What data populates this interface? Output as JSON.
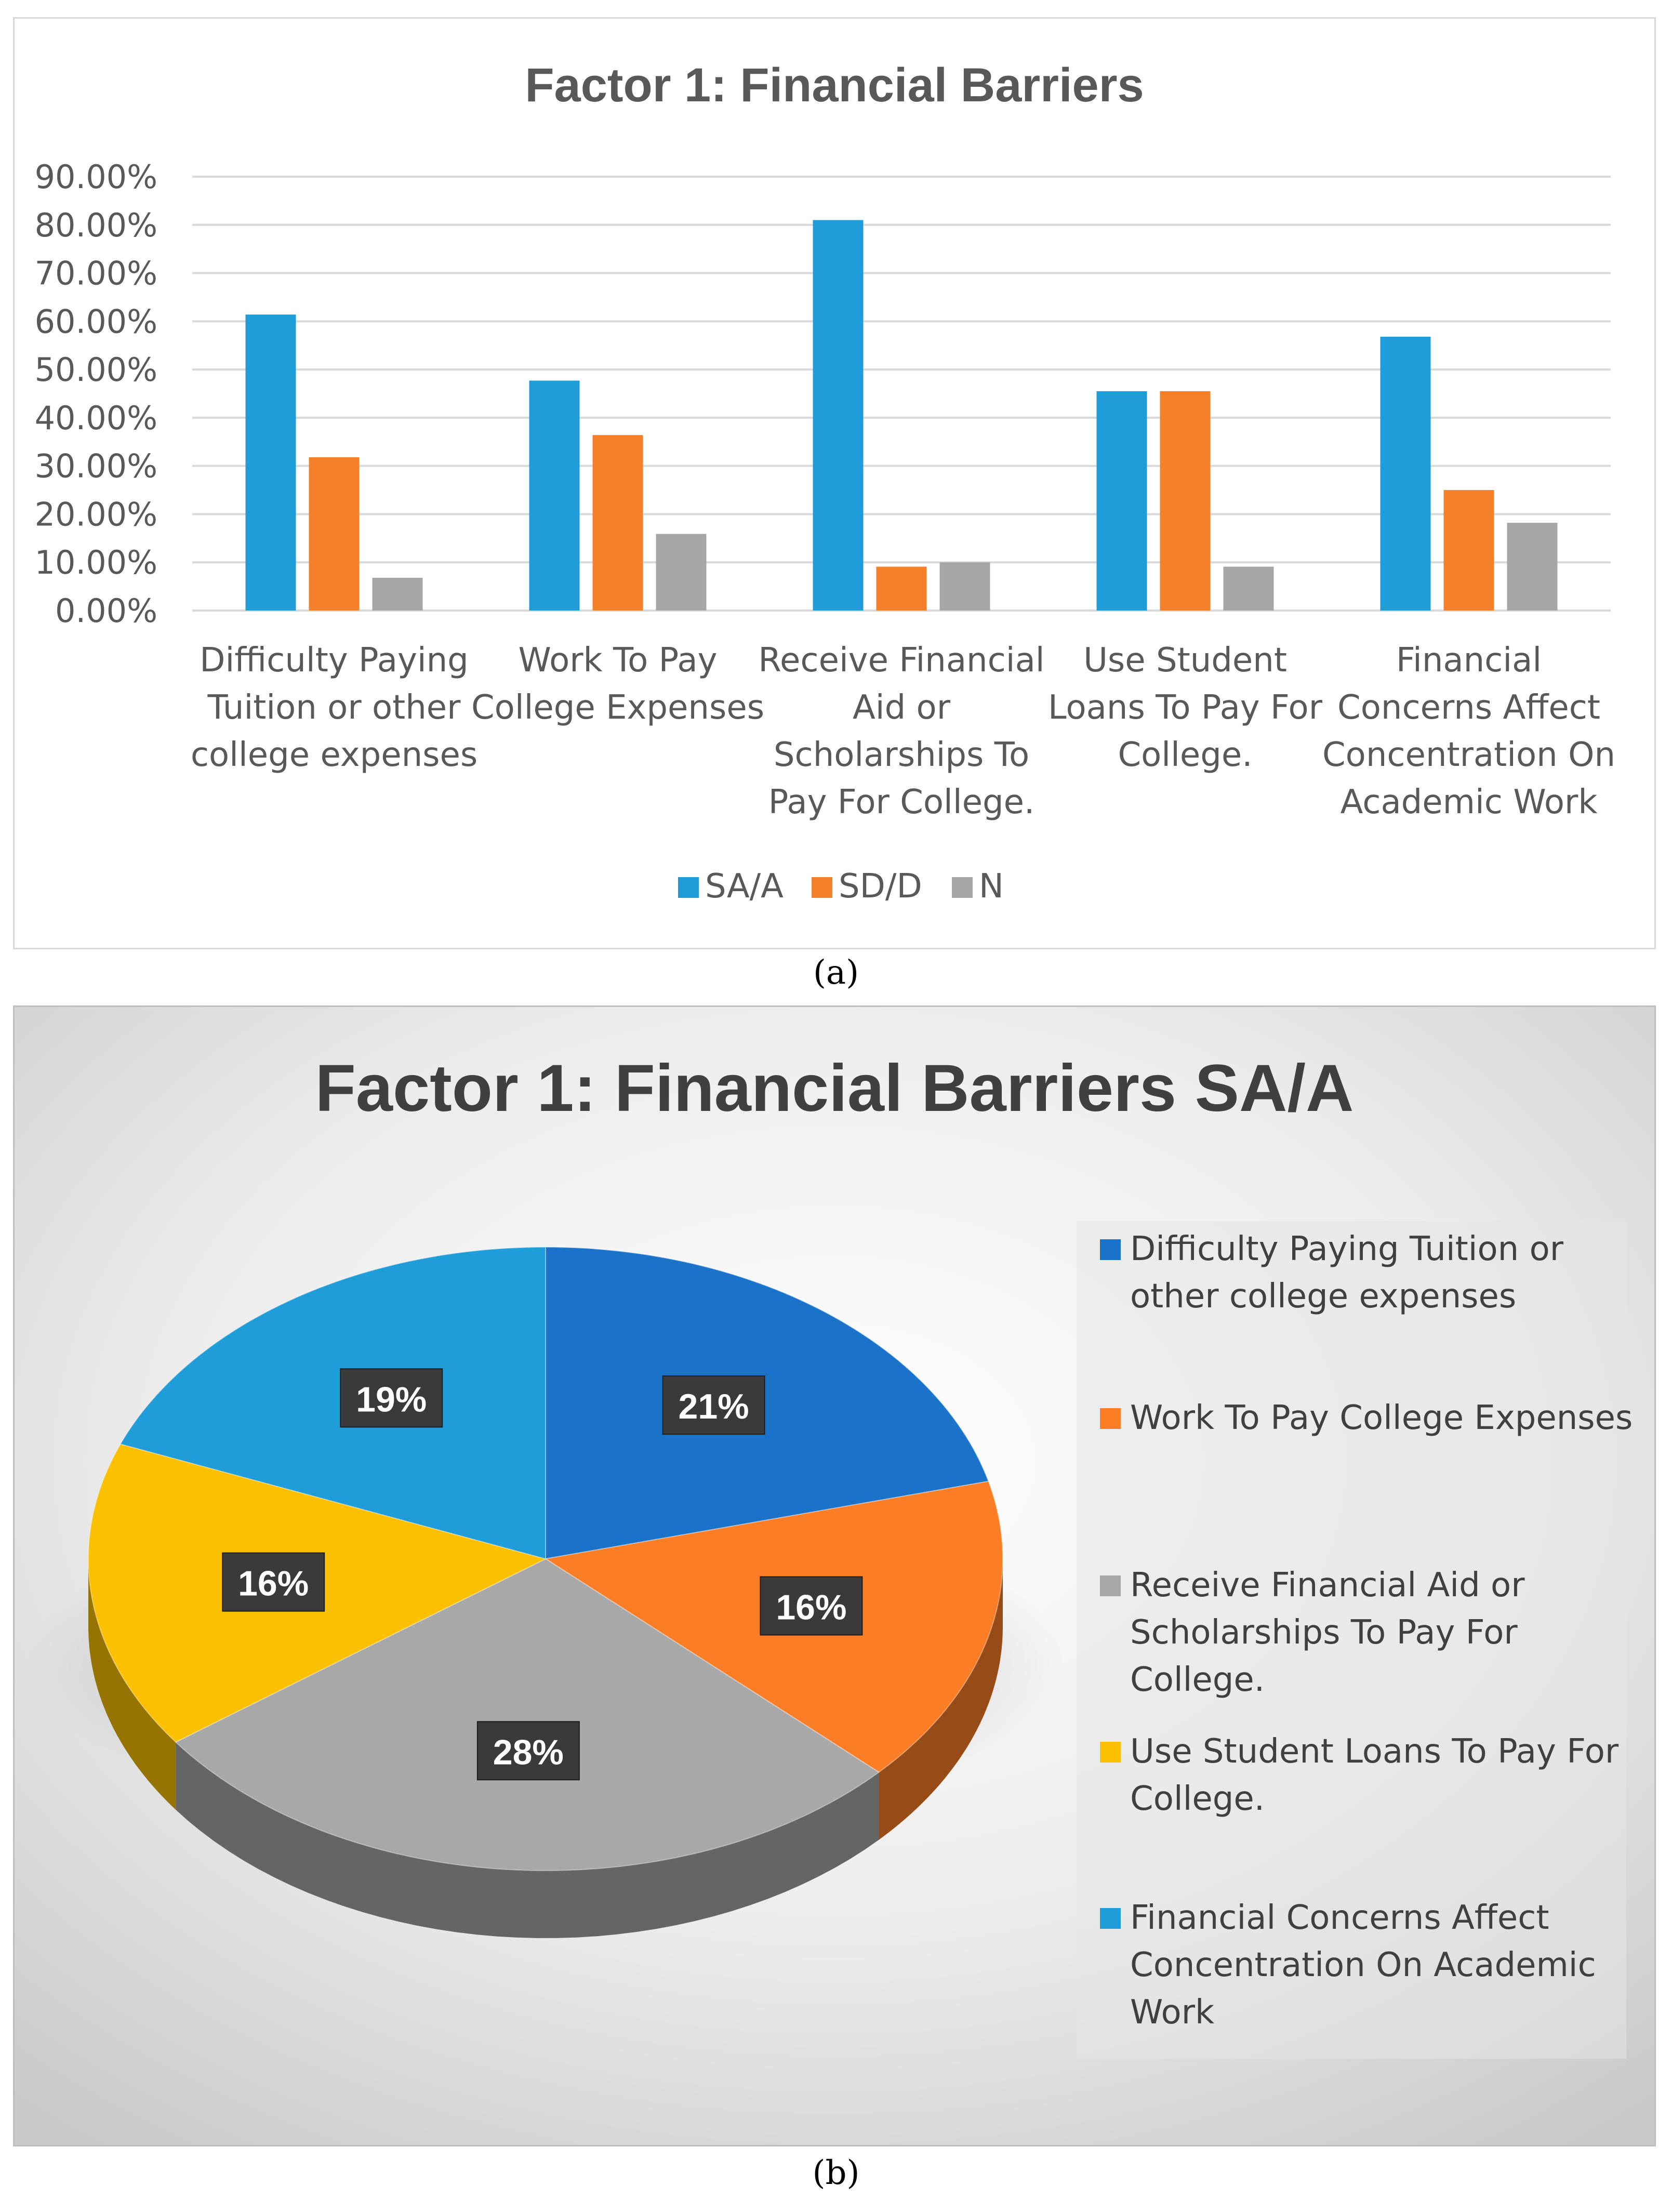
{
  "panel_a_caption": "(a)",
  "panel_b_caption": "(b)",
  "chart_data": [
    {
      "type": "bar",
      "title": "Factor 1: Financial Barriers",
      "categories": [
        "Difficulty Paying Tuition or other college expenses",
        "Work To Pay College Expenses",
        "Receive Financial Aid or Scholarships To Pay For College.",
        "Use Student Loans To Pay For College.",
        "Financial Concerns Affect Concentration On Academic Work"
      ],
      "category_lines": [
        [
          "Difficulty Paying",
          "Tuition or other",
          "college expenses"
        ],
        [
          "Work To Pay",
          "College Expenses"
        ],
        [
          "Receive Financial",
          "Aid or",
          "Scholarships To",
          "Pay For College."
        ],
        [
          "Use Student",
          "Loans To Pay For",
          "College."
        ],
        [
          "Financial",
          "Concerns Affect",
          "Concentration On",
          "Academic Work"
        ]
      ],
      "series": [
        {
          "name": "SA/A",
          "color": "#1f9dd9",
          "values": [
            61.4,
            47.7,
            81.0,
            45.5,
            56.8
          ]
        },
        {
          "name": "SD/D",
          "color": "#f5802a",
          "values": [
            31.8,
            36.4,
            9.1,
            45.5,
            25.0
          ]
        },
        {
          "name": "N",
          "color": "#a6a6a6",
          "values": [
            6.8,
            15.9,
            10.0,
            9.1,
            18.2
          ]
        }
      ],
      "ylim": [
        0,
        90
      ],
      "yticks": [
        "0.00%",
        "10.00%",
        "20.00%",
        "30.00%",
        "40.00%",
        "50.00%",
        "60.00%",
        "70.00%",
        "80.00%",
        "90.00%"
      ],
      "xlabel": "",
      "ylabel": "",
      "grid": true,
      "legend": "bottom"
    },
    {
      "type": "pie",
      "title": "Factor 1: Financial Barriers SA/A",
      "categories": [
        "Difficulty Paying Tuition or other college expenses",
        "Work To Pay College Expenses",
        "Receive Financial Aid or Scholarships To Pay For College.",
        "Use Student Loans To Pay For College.",
        "Financial Concerns Affect Concentration On Academic Work"
      ],
      "legend_lines": [
        [
          "Difficulty Paying Tuition or",
          "other college expenses"
        ],
        [
          "Work To Pay College Expenses"
        ],
        [
          "Receive Financial Aid or",
          "Scholarships To Pay For",
          "College."
        ],
        [
          "Use Student Loans To Pay For",
          "College."
        ],
        [
          "Financial Concerns Affect",
          "Concentration On Academic",
          "Work"
        ]
      ],
      "values": [
        21,
        16,
        28,
        16,
        19
      ],
      "labels": [
        "21%",
        "16%",
        "28%",
        "16%",
        "19%"
      ],
      "colors": [
        "#1a72c9",
        "#fb7d25",
        "#a8a8a8",
        "#fcc002",
        "#1f9dd9"
      ],
      "legend": "right"
    }
  ]
}
